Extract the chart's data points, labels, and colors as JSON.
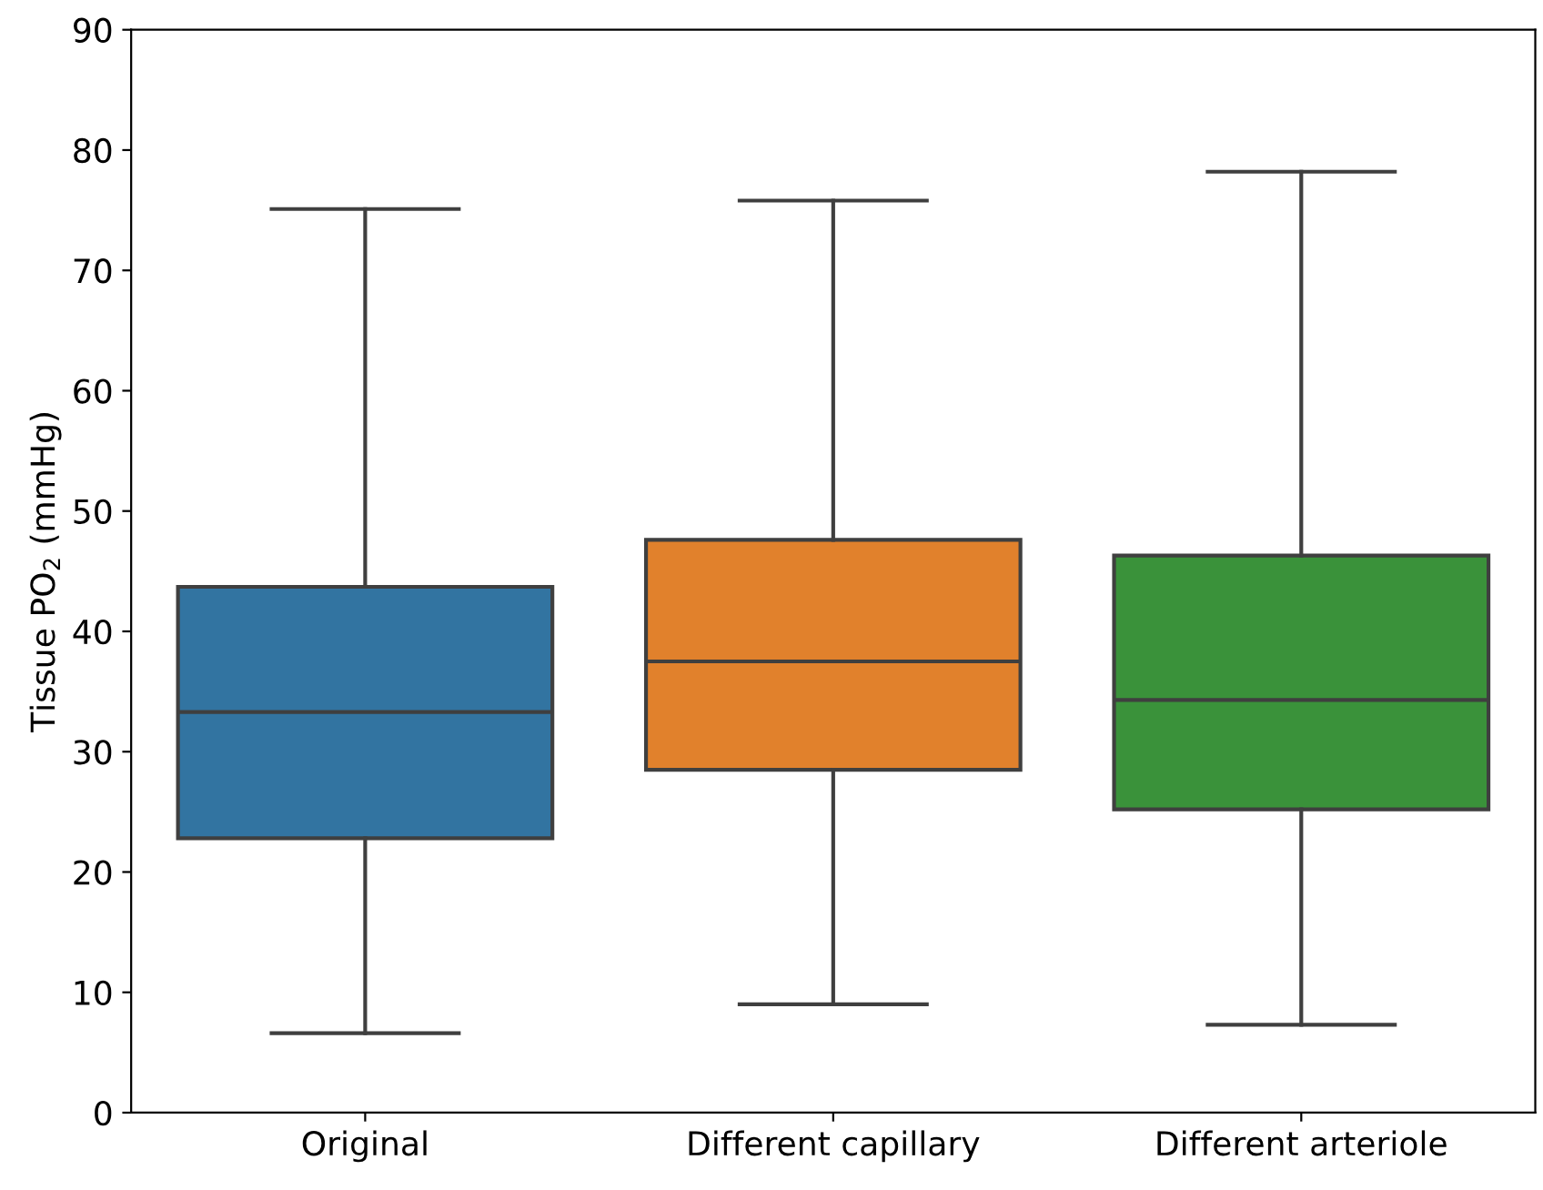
{
  "chart_data": {
    "type": "box",
    "ylabel": "Tissue PO$_{2}$ (mmHg)",
    "categories": [
      "Original",
      "Different capillary",
      "Different arteriole"
    ],
    "colors": [
      "#3274a1",
      "#e1812c",
      "#3a923a"
    ],
    "boxes": [
      {
        "low": 6.6,
        "q1": 22.8,
        "median": 33.3,
        "q3": 43.7,
        "high": 75.1
      },
      {
        "low": 9.0,
        "q1": 28.5,
        "median": 37.5,
        "q3": 47.6,
        "high": 75.8
      },
      {
        "low": 7.3,
        "q1": 25.2,
        "median": 34.3,
        "q3": 46.3,
        "high": 78.2
      }
    ],
    "ylim": [
      0,
      90
    ],
    "yticks": [
      0,
      10,
      20,
      30,
      40,
      50,
      60,
      70,
      80,
      90
    ],
    "grid": false
  }
}
